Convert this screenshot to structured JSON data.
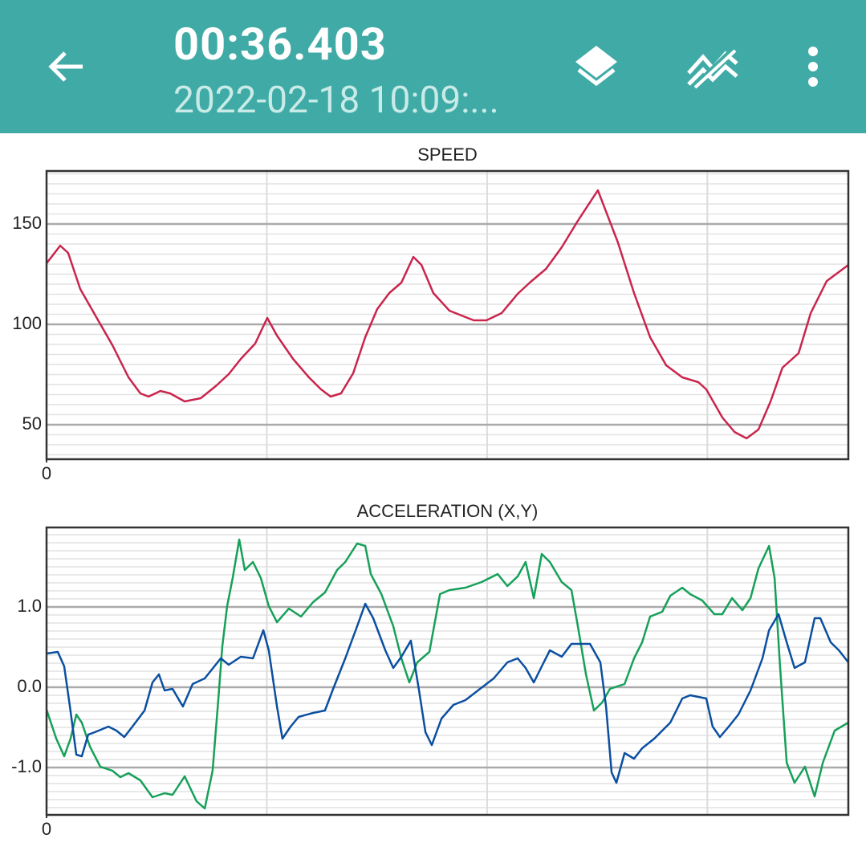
{
  "header": {
    "title": "00:36.403",
    "subtitle": "2022-02-18 10:09:..."
  },
  "chart_data": [
    {
      "type": "line",
      "title": "SPEED",
      "xlim": [
        0,
        36.4
      ],
      "xticks": [
        0
      ],
      "x_grid": [
        10,
        20,
        30
      ],
      "ylim": [
        32.8,
        176.4
      ],
      "yticks": [
        50,
        100,
        150
      ],
      "minor_grid_step": 5,
      "grid": true,
      "series": [
        {
          "color": "#c9254d",
          "x": [
            0,
            0.62,
            0.98,
            1.53,
            2.26,
            2.99,
            3.72,
            4.26,
            4.63,
            5.17,
            5.61,
            6.27,
            7.0,
            7.72,
            8.27,
            8.82,
            9.47,
            10.02,
            10.46,
            11.19,
            11.91,
            12.46,
            12.9,
            13.37,
            13.92,
            14.47,
            15.01,
            15.56,
            16.11,
            16.65,
            17.02,
            17.56,
            18.29,
            19.39,
            19.97,
            20.66,
            21.39,
            21.94,
            22.67,
            23.39,
            24.12,
            25.03,
            25.94,
            26.67,
            27.4,
            28.13,
            28.86,
            29.59,
            29.95,
            30.68,
            31.23,
            31.78,
            32.32,
            32.87,
            33.41,
            34.14,
            34.69,
            35.42,
            36.4
          ],
          "values": [
            130.4,
            139.2,
            135.6,
            117.6,
            103.6,
            89.6,
            73.6,
            65.6,
            64,
            66.8,
            65.6,
            61.6,
            63.2,
            69.6,
            75.2,
            82.8,
            90.4,
            103.2,
            94.4,
            82.8,
            73.6,
            67.6,
            64,
            65.6,
            75.6,
            93.6,
            107.6,
            115.6,
            120.8,
            133.6,
            129.6,
            115.6,
            106.8,
            102,
            102,
            105.6,
            115.2,
            120.8,
            127.6,
            138.4,
            151.6,
            166.8,
            140.8,
            115.6,
            93.6,
            79.6,
            73.6,
            71.2,
            67.6,
            53.6,
            46.4,
            43.2,
            47.6,
            61.6,
            78.4,
            85.6,
            105.6,
            121.6,
            129.6
          ]
        }
      ]
    },
    {
      "type": "line",
      "title": "ACCELERATION (X,Y)",
      "xlim": [
        0,
        36.4
      ],
      "xticks": [
        0
      ],
      "x_grid": [
        10,
        20,
        30
      ],
      "ylim": [
        -1.59,
        1.99
      ],
      "yticks": [
        {
          "value": -1,
          "label": "-1.0"
        },
        {
          "value": 0,
          "label": "0.0"
        },
        {
          "value": 1,
          "label": "1.0"
        }
      ],
      "minor_grid_step": 0.1,
      "grid": true,
      "series": [
        {
          "color": "#17a05a",
          "x": [
            0,
            0.44,
            0.8,
            1.09,
            1.35,
            1.6,
            1.97,
            2.44,
            2.99,
            3.35,
            3.72,
            4.26,
            4.81,
            5.36,
            5.72,
            6.27,
            6.81,
            7.18,
            7.54,
            7.8,
            7.98,
            8.2,
            8.45,
            8.75,
            9.0,
            9.37,
            9.73,
            10.09,
            10.46,
            11.0,
            11.55,
            12.1,
            12.64,
            13.19,
            13.56,
            14.1,
            14.47,
            14.72,
            15.2,
            15.74,
            16.11,
            16.47,
            16.83,
            17.38,
            17.86,
            18.29,
            19.02,
            19.75,
            20.48,
            20.92,
            21.39,
            21.75,
            22.12,
            22.48,
            22.85,
            23.39,
            23.83,
            24.12,
            24.49,
            24.85,
            25.22,
            25.58,
            26.24,
            26.67,
            27.04,
            27.4,
            27.95,
            28.32,
            28.86,
            29.22,
            29.77,
            30.32,
            30.68,
            31.12,
            31.59,
            31.96,
            32.32,
            32.8,
            33.05,
            33.3,
            33.6,
            33.96,
            34.43,
            34.87,
            35.24,
            35.78,
            36.4
          ],
          "values": [
            -0.28,
            -0.64,
            -0.86,
            -0.64,
            -0.34,
            -0.44,
            -0.74,
            -0.99,
            -1.04,
            -1.12,
            -1.07,
            -1.16,
            -1.37,
            -1.32,
            -1.34,
            -1.11,
            -1.42,
            -1.51,
            -1.04,
            -0.14,
            0.51,
            1.01,
            1.36,
            1.84,
            1.46,
            1.56,
            1.36,
            1.01,
            0.81,
            0.98,
            0.88,
            1.06,
            1.18,
            1.46,
            1.56,
            1.79,
            1.76,
            1.41,
            1.16,
            0.76,
            0.36,
            0.06,
            0.31,
            0.44,
            1.16,
            1.21,
            1.24,
            1.31,
            1.41,
            1.26,
            1.38,
            1.56,
            1.11,
            1.66,
            1.56,
            1.31,
            1.21,
            0.76,
            0.16,
            -0.29,
            -0.19,
            -0.02,
            0.04,
            0.36,
            0.56,
            0.88,
            0.94,
            1.14,
            1.24,
            1.16,
            1.08,
            0.91,
            0.91,
            1.11,
            0.96,
            1.11,
            1.48,
            1.76,
            1.36,
            0.26,
            -0.94,
            -1.19,
            -0.99,
            -1.36,
            -0.94,
            -0.54,
            -0.44
          ]
        },
        {
          "color": "#0b4fa0",
          "x": [
            0,
            0.51,
            0.8,
            1.06,
            1.35,
            1.6,
            1.89,
            2.19,
            2.81,
            3.17,
            3.53,
            3.9,
            4.45,
            4.81,
            5.1,
            5.36,
            5.72,
            6.19,
            6.63,
            7.18,
            7.91,
            8.27,
            8.82,
            9.37,
            9.84,
            10.09,
            10.46,
            10.71,
            11.08,
            11.44,
            12.1,
            12.64,
            13.01,
            13.56,
            14.1,
            14.47,
            14.83,
            15.38,
            15.74,
            16.11,
            16.54,
            16.91,
            17.2,
            17.49,
            17.93,
            18.47,
            19.02,
            19.68,
            20.3,
            20.92,
            21.39,
            21.75,
            22.12,
            22.48,
            22.85,
            23.39,
            23.83,
            24.67,
            25.14,
            25.4,
            25.65,
            25.87,
            26.24,
            26.67,
            27.04,
            27.59,
            28.32,
            28.86,
            29.22,
            29.95,
            30.24,
            30.57,
            30.97,
            31.41,
            31.96,
            32.5,
            32.8,
            33.23,
            33.6,
            33.96,
            34.43,
            34.87,
            35.13,
            35.6,
            35.97,
            36.4
          ],
          "values": [
            0.42,
            0.44,
            0.26,
            -0.24,
            -0.84,
            -0.86,
            -0.59,
            -0.56,
            -0.49,
            -0.54,
            -0.62,
            -0.49,
            -0.29,
            0.06,
            0.16,
            -0.04,
            -0.02,
            -0.24,
            0.04,
            0.11,
            0.36,
            0.28,
            0.38,
            0.36,
            0.71,
            0.46,
            -0.24,
            -0.64,
            -0.49,
            -0.37,
            -0.32,
            -0.29,
            -0.02,
            0.36,
            0.76,
            1.04,
            0.86,
            0.46,
            0.24,
            0.38,
            0.58,
            -0.04,
            -0.56,
            -0.72,
            -0.39,
            -0.22,
            -0.16,
            -0.02,
            0.11,
            0.31,
            0.36,
            0.24,
            0.06,
            0.26,
            0.46,
            0.38,
            0.54,
            0.54,
            0.31,
            -0.24,
            -1.06,
            -1.19,
            -0.82,
            -0.89,
            -0.76,
            -0.64,
            -0.44,
            -0.14,
            -0.1,
            -0.14,
            -0.49,
            -0.62,
            -0.49,
            -0.34,
            -0.04,
            0.36,
            0.71,
            0.91,
            0.56,
            0.24,
            0.31,
            0.86,
            0.86,
            0.56,
            0.46,
            0.31
          ]
        }
      ]
    }
  ]
}
